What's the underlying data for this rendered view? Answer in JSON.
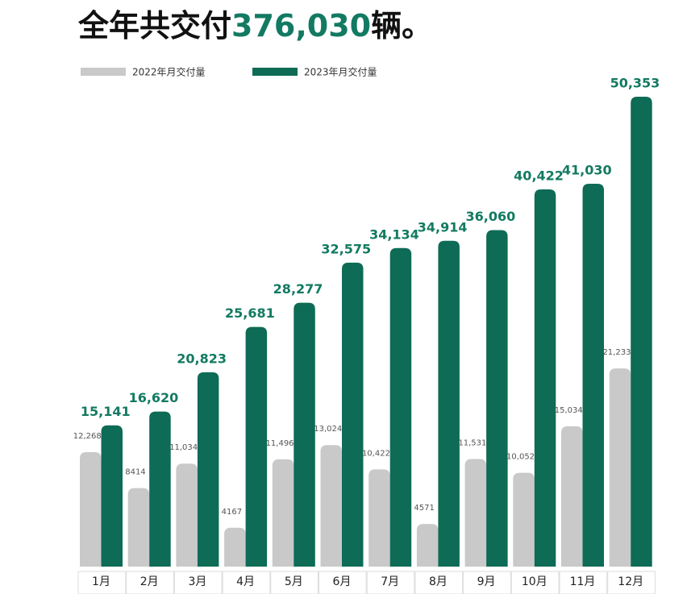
{
  "chart_data": {
    "type": "bar",
    "title_prefix": "全年共交付",
    "title_number": "376,030",
    "title_suffix": "辆。",
    "categories": [
      "1月",
      "2月",
      "3月",
      "4月",
      "5月",
      "6月",
      "7月",
      "8月",
      "9月",
      "10月",
      "11月",
      "12月"
    ],
    "series": [
      {
        "name": "2022年月交付量",
        "color": "#c9c9c9",
        "values": [
          12268,
          8414,
          11034,
          4167,
          11496,
          13024,
          10422,
          4571,
          11531,
          10052,
          15034,
          21233
        ],
        "value_labels": [
          "12,268",
          "8414",
          "11,034",
          "4167",
          "11,496",
          "13,024",
          "10,422",
          "4571",
          "11,531",
          "10,052",
          "15,034",
          "21,233"
        ]
      },
      {
        "name": "2023年月交付量",
        "color": "#0e6b55",
        "values": [
          15141,
          16620,
          20823,
          25681,
          28277,
          32575,
          34134,
          34914,
          36060,
          40422,
          41030,
          50353
        ],
        "value_labels": [
          "15,141",
          "16,620",
          "20,823",
          "25,681",
          "28,277",
          "32,575",
          "34,134",
          "34,914",
          "36,060",
          "40,422",
          "41,030",
          "50,353"
        ]
      }
    ]
  }
}
